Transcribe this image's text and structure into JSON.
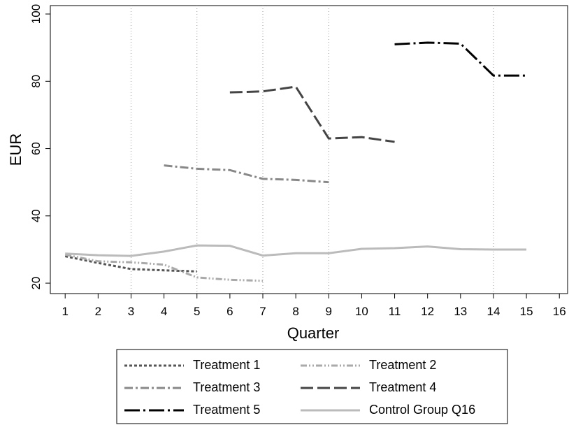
{
  "chart_data": {
    "type": "line",
    "x_label": "Quarter",
    "y_label": "EUR",
    "x": [
      1,
      2,
      3,
      4,
      5,
      6,
      7,
      8,
      9,
      10,
      11,
      12,
      13,
      14,
      15
    ],
    "series": [
      {
        "name": "Treatment 1",
        "color": "#555555",
        "values": [
          28,
          26,
          24.2,
          23.8,
          23.5,
          null,
          null,
          null,
          null,
          null,
          null,
          null,
          null,
          null,
          null
        ]
      },
      {
        "name": "Treatment 2",
        "color": "#aaaaaa",
        "values": [
          28.5,
          26.5,
          26.2,
          25.5,
          21.7,
          21,
          20.7,
          null,
          null,
          null,
          null,
          null,
          null,
          null,
          null
        ]
      },
      {
        "name": "Treatment 3",
        "color": "#888888",
        "values": [
          null,
          null,
          null,
          55,
          54,
          53.6,
          51,
          50.7,
          50,
          null,
          null,
          null,
          null,
          null,
          null
        ]
      },
      {
        "name": "Treatment 4",
        "color": "#444444",
        "values": [
          null,
          null,
          null,
          null,
          null,
          76.7,
          77,
          78.4,
          63,
          63.4,
          62,
          null,
          null,
          null,
          null
        ]
      },
      {
        "name": "Treatment 5",
        "color": "#000000",
        "values": [
          null,
          null,
          null,
          null,
          null,
          null,
          null,
          null,
          null,
          null,
          91,
          91.5,
          91.2,
          81.7,
          81.7
        ]
      },
      {
        "name": "Control Group Q16",
        "color": "#bbbbbb",
        "values": [
          28.8,
          28.3,
          28.1,
          29.4,
          31.2,
          31.1,
          28.2,
          28.9,
          28.9,
          30.2,
          30.4,
          30.9,
          30.1,
          30,
          30
        ]
      }
    ],
    "xlim": [
      0.55,
      16.25
    ],
    "xticks": [
      1,
      2,
      3,
      4,
      5,
      6,
      7,
      8,
      9,
      10,
      11,
      12,
      13,
      14,
      15,
      16
    ],
    "ylim": [
      16.9,
      102.5
    ],
    "yticks": [
      20,
      40,
      60,
      80,
      100
    ],
    "xlines": [
      3,
      5,
      7,
      9,
      14
    ]
  }
}
